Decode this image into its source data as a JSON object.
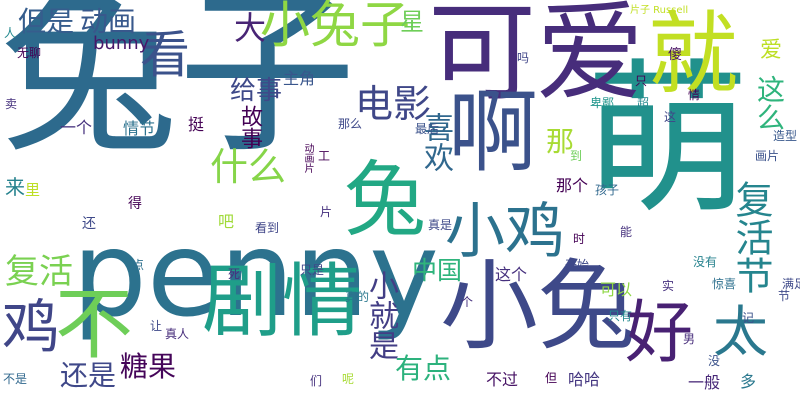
{
  "words": [
    {
      "text": "兔子",
      "color": "#2d6a8d",
      "vertical": false
    },
    {
      "text": "萌",
      "color": "#21918c",
      "vertical": false
    },
    {
      "text": "penny",
      "color": "#2c728e",
      "vertical": false
    },
    {
      "text": "可爱",
      "color": "#472d7b",
      "vertical": false
    },
    {
      "text": "小兔",
      "color": "#3e4989",
      "vertical": false
    },
    {
      "text": "剧情",
      "color": "#1f9e89",
      "vertical": false
    },
    {
      "text": "啊",
      "color": "#3b528b",
      "vertical": false
    },
    {
      "text": "兔",
      "color": "#22a884",
      "vertical": false
    },
    {
      "text": "就",
      "color": "#c2df23",
      "vertical": false
    },
    {
      "text": "不",
      "color": "#6ece58",
      "vertical": false
    },
    {
      "text": "好",
      "color": "#482173",
      "vertical": false
    },
    {
      "text": "太",
      "color": "#2a788e",
      "vertical": false
    },
    {
      "text": "小鸡",
      "color": "#2c728e",
      "vertical": false
    },
    {
      "text": "鸡",
      "color": "#404688",
      "vertical": false
    },
    {
      "text": "看",
      "color": "#3b528b",
      "vertical": false
    },
    {
      "text": "小兔子",
      "color": "#8fd744",
      "vertical": false
    },
    {
      "text": "复活节",
      "color": "#25858e",
      "vertical": true
    },
    {
      "text": "电影",
      "color": "#3f4788",
      "vertical": false
    },
    {
      "text": "什么",
      "color": "#86d549",
      "vertical": false
    },
    {
      "text": "喜欢",
      "color": "#31688e",
      "vertical": true
    },
    {
      "text": "这么",
      "color": "#2fb47c",
      "vertical": true
    },
    {
      "text": "大",
      "color": "#482475",
      "vertical": false
    },
    {
      "text": "复活",
      "color": "#7ad151",
      "vertical": false
    },
    {
      "text": "小就是",
      "color": "#433e85",
      "vertical": true
    },
    {
      "text": "有点",
      "color": "#2db27d",
      "vertical": false
    },
    {
      "text": "糖果",
      "color": "#450559",
      "vertical": false
    },
    {
      "text": "还是",
      "color": "#3f4889",
      "vertical": false
    },
    {
      "text": "中国",
      "color": "#2fb47c",
      "vertical": false
    },
    {
      "text": "动画",
      "color": "#38588c",
      "vertical": false
    },
    {
      "text": "但是",
      "color": "#365d8d",
      "vertical": false
    },
    {
      "text": "故事",
      "color": "#440154",
      "vertical": true
    },
    {
      "text": "给事",
      "color": "#3e4989",
      "vertical": false
    },
    {
      "text": "那",
      "color": "#a8db34",
      "vertical": false
    },
    {
      "text": "星",
      "color": "#6ece58",
      "vertical": false
    },
    {
      "text": "爱",
      "color": "#bddf26",
      "vertical": false
    },
    {
      "text": "bunny",
      "color": "#48186a",
      "vertical": false
    },
    {
      "text": "傻",
      "color": "#471063",
      "vertical": false
    },
    {
      "text": "主角",
      "color": "#39568c",
      "vertical": false
    },
    {
      "text": "情节",
      "color": "#2c728e",
      "vertical": false
    },
    {
      "text": "一个",
      "color": "#46327e",
      "vertical": false
    },
    {
      "text": "无聊",
      "color": "#440154",
      "vertical": false
    },
    {
      "text": "片子 Russell",
      "color": "#c2df23",
      "vertical": false
    },
    {
      "text": "来",
      "color": "#26828e",
      "vertical": false
    },
    {
      "text": "这个",
      "color": "#46307e",
      "vertical": false
    },
    {
      "text": "不过",
      "color": "#471365",
      "vertical": false
    },
    {
      "text": "哈哈",
      "color": "#453781",
      "vertical": false
    },
    {
      "text": "可以",
      "color": "#8fd744",
      "vertical": false
    },
    {
      "text": "那个",
      "color": "#440154",
      "vertical": false
    },
    {
      "text": "孩子",
      "color": "#31688e",
      "vertical": false
    },
    {
      "text": "没有",
      "color": "#26828e",
      "vertical": false
    },
    {
      "text": "只有",
      "color": "#23898e",
      "vertical": false
    },
    {
      "text": "一般",
      "color": "#482878",
      "vertical": false
    },
    {
      "text": "多",
      "color": "#2a788e",
      "vertical": false
    },
    {
      "text": "惊喜",
      "color": "#2d708e",
      "vertical": false
    },
    {
      "text": "卑鄙",
      "color": "#1f958b",
      "vertical": false
    },
    {
      "text": "画片",
      "color": "#3b528b",
      "vertical": false
    },
    {
      "text": "造型",
      "color": "#38588c",
      "vertical": false
    },
    {
      "text": "吗",
      "color": "#404688",
      "vertical": false
    },
    {
      "text": "挺",
      "color": "#440154",
      "vertical": false
    },
    {
      "text": "最后",
      "color": "#3b528b",
      "vertical": false
    },
    {
      "text": "人",
      "color": "#23898e",
      "vertical": false
    },
    {
      "text": "卖",
      "color": "#46327e",
      "vertical": false
    },
    {
      "text": "里",
      "color": "#bddf26",
      "vertical": false
    },
    {
      "text": "还",
      "color": "#3e4989",
      "vertical": false
    },
    {
      "text": "得",
      "color": "#440154",
      "vertical": false
    },
    {
      "text": "看到",
      "color": "#404688",
      "vertical": false
    },
    {
      "text": "片",
      "color": "#46307e",
      "vertical": false
    },
    {
      "text": "真是",
      "color": "#3e4989",
      "vertical": false
    },
    {
      "text": "时",
      "color": "#440154",
      "vertical": false
    },
    {
      "text": "能",
      "color": "#46327e",
      "vertical": false
    },
    {
      "text": "吧",
      "color": "#a0da39",
      "vertical": false
    },
    {
      "text": "点",
      "color": "#2d708e",
      "vertical": false
    },
    {
      "text": "只是",
      "color": "#404688",
      "vertical": false
    },
    {
      "text": "死",
      "color": "#46307e",
      "vertical": false
    },
    {
      "text": "真的",
      "color": "#2a788e",
      "vertical": false
    },
    {
      "text": "开始",
      "color": "#3e4989",
      "vertical": false
    },
    {
      "text": "让",
      "color": "#3e4989",
      "vertical": false
    },
    {
      "text": "真人",
      "color": "#472d7b",
      "vertical": false
    },
    {
      "text": "不是",
      "color": "#31688e",
      "vertical": false
    },
    {
      "text": "们",
      "color": "#46327e",
      "vertical": false
    },
    {
      "text": "呢",
      "color": "#a8db34",
      "vertical": false
    },
    {
      "text": "但",
      "color": "#440154",
      "vertical": false
    },
    {
      "text": "男",
      "color": "#472d7b",
      "vertical": false
    },
    {
      "text": "没",
      "color": "#3b528b",
      "vertical": false
    },
    {
      "text": "只",
      "color": "#440154",
      "vertical": false
    },
    {
      "text": "情",
      "color": "#440154",
      "vertical": false
    },
    {
      "text": "这",
      "color": "#404688",
      "vertical": false
    },
    {
      "text": "超",
      "color": "#23898e",
      "vertical": false
    },
    {
      "text": "那么",
      "color": "#3e4989",
      "vertical": false
    },
    {
      "text": "到",
      "color": "#6ece58",
      "vertical": false
    },
    {
      "text": "个",
      "color": "#46307e",
      "vertical": false
    },
    {
      "text": "工",
      "color": "#440154",
      "vertical": false
    },
    {
      "text": "动画片",
      "color": "#440154",
      "vertical": true
    },
    {
      "text": "实",
      "color": "#46307e",
      "vertical": false
    },
    {
      "text": "节",
      "color": "#3e4989",
      "vertical": false
    },
    {
      "text": "记",
      "color": "#3b528b",
      "vertical": false
    },
    {
      "text": "满足",
      "color": "#3e4989",
      "vertical": false
    }
  ]
}
